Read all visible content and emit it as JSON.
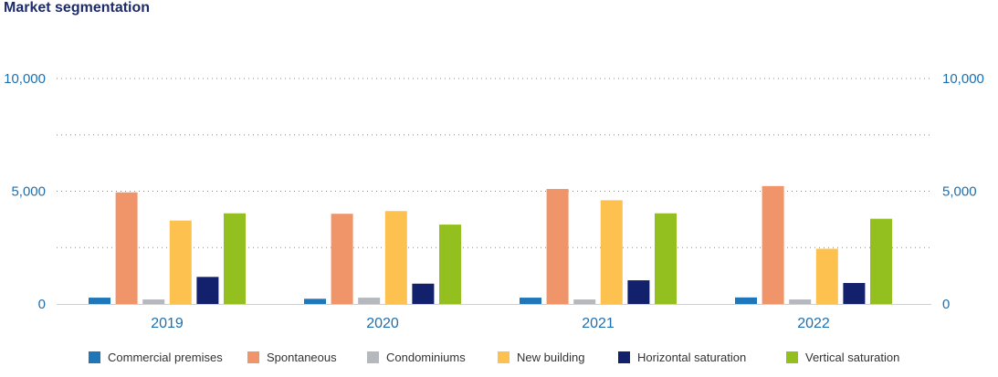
{
  "chart_data": {
    "type": "bar",
    "title": "Market segmentation",
    "categories": [
      "2019",
      "2020",
      "2021",
      "2022"
    ],
    "ylim": [
      0,
      10000
    ],
    "yticks": [
      0,
      5000,
      10000
    ],
    "ytick_labels": [
      "0",
      "5,000",
      "10,000"
    ],
    "grid": "dotted",
    "legend_position": "bottom",
    "series": [
      {
        "name": "Commercial premises",
        "color": "#1f77b9",
        "values": [
          280,
          230,
          280,
          290
        ]
      },
      {
        "name": "Spontaneous",
        "color": "#f0956a",
        "values": [
          4950,
          4000,
          5100,
          5230
        ]
      },
      {
        "name": "Condominiums",
        "color": "#b5b8bc",
        "values": [
          200,
          280,
          200,
          200
        ]
      },
      {
        "name": "New building",
        "color": "#fcc14f",
        "values": [
          3700,
          4120,
          4600,
          2450
        ]
      },
      {
        "name": "Horizontal saturation",
        "color": "#13206b",
        "values": [
          1200,
          900,
          1050,
          930
        ]
      },
      {
        "name": "Vertical saturation",
        "color": "#93c01f",
        "values": [
          4020,
          3520,
          4020,
          3780
        ]
      }
    ]
  }
}
